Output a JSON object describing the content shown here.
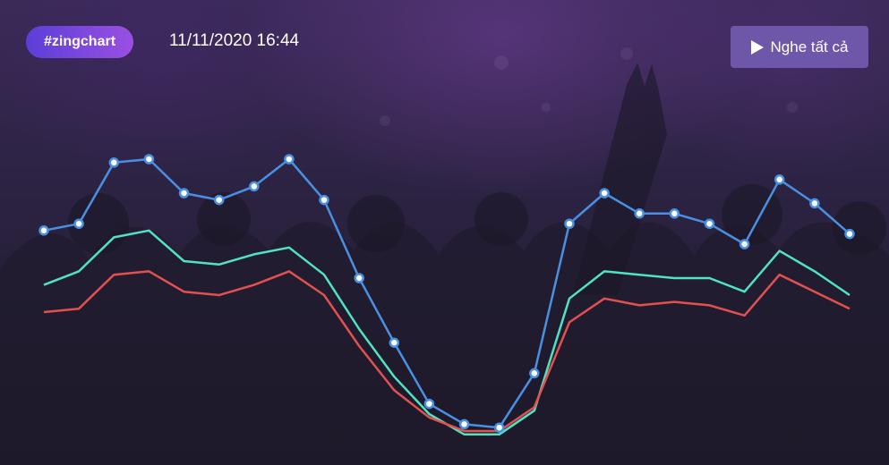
{
  "header": {
    "tag_label": "#zingchart",
    "datetime": "11/11/2020 16:44",
    "play_label": "Nghe tất cả"
  },
  "colors": {
    "series_1": "#4a90e2",
    "series_2": "#50e3c2",
    "series_3": "#e35050",
    "tag_gradient_start": "#5b3fd8",
    "tag_gradient_end": "#9b4fe2",
    "play_button": "#6e57a8"
  },
  "icons": {
    "play": "play-icon"
  },
  "chart_data": {
    "type": "line",
    "title": "",
    "xlabel": "",
    "ylabel": "",
    "x": [
      1,
      2,
      3,
      4,
      5,
      6,
      7,
      8,
      9,
      10,
      11,
      12,
      13,
      14,
      15,
      16,
      17,
      18,
      19,
      20,
      21,
      22,
      23,
      24
    ],
    "ylim": [
      0,
      100
    ],
    "grid": false,
    "series": [
      {
        "color": "#4a90e2",
        "markers": true,
        "values": [
          69,
          71,
          89,
          90,
          80,
          78,
          82,
          90,
          78,
          55,
          36,
          18,
          12,
          11,
          27,
          71,
          80,
          74,
          74,
          71,
          65,
          84,
          77,
          68
        ]
      },
      {
        "color": "#50e3c2",
        "markers": false,
        "values": [
          53,
          57,
          67,
          69,
          60,
          59,
          62,
          64,
          56,
          40,
          26,
          15,
          9,
          9,
          16,
          49,
          57,
          56,
          55,
          55,
          51,
          63,
          57,
          50
        ]
      },
      {
        "color": "#e35050",
        "markers": false,
        "values": [
          45,
          46,
          56,
          57,
          51,
          50,
          53,
          57,
          50,
          35,
          22,
          14,
          10,
          10,
          17,
          42,
          49,
          47,
          48,
          47,
          44,
          56,
          51,
          46
        ]
      }
    ]
  }
}
